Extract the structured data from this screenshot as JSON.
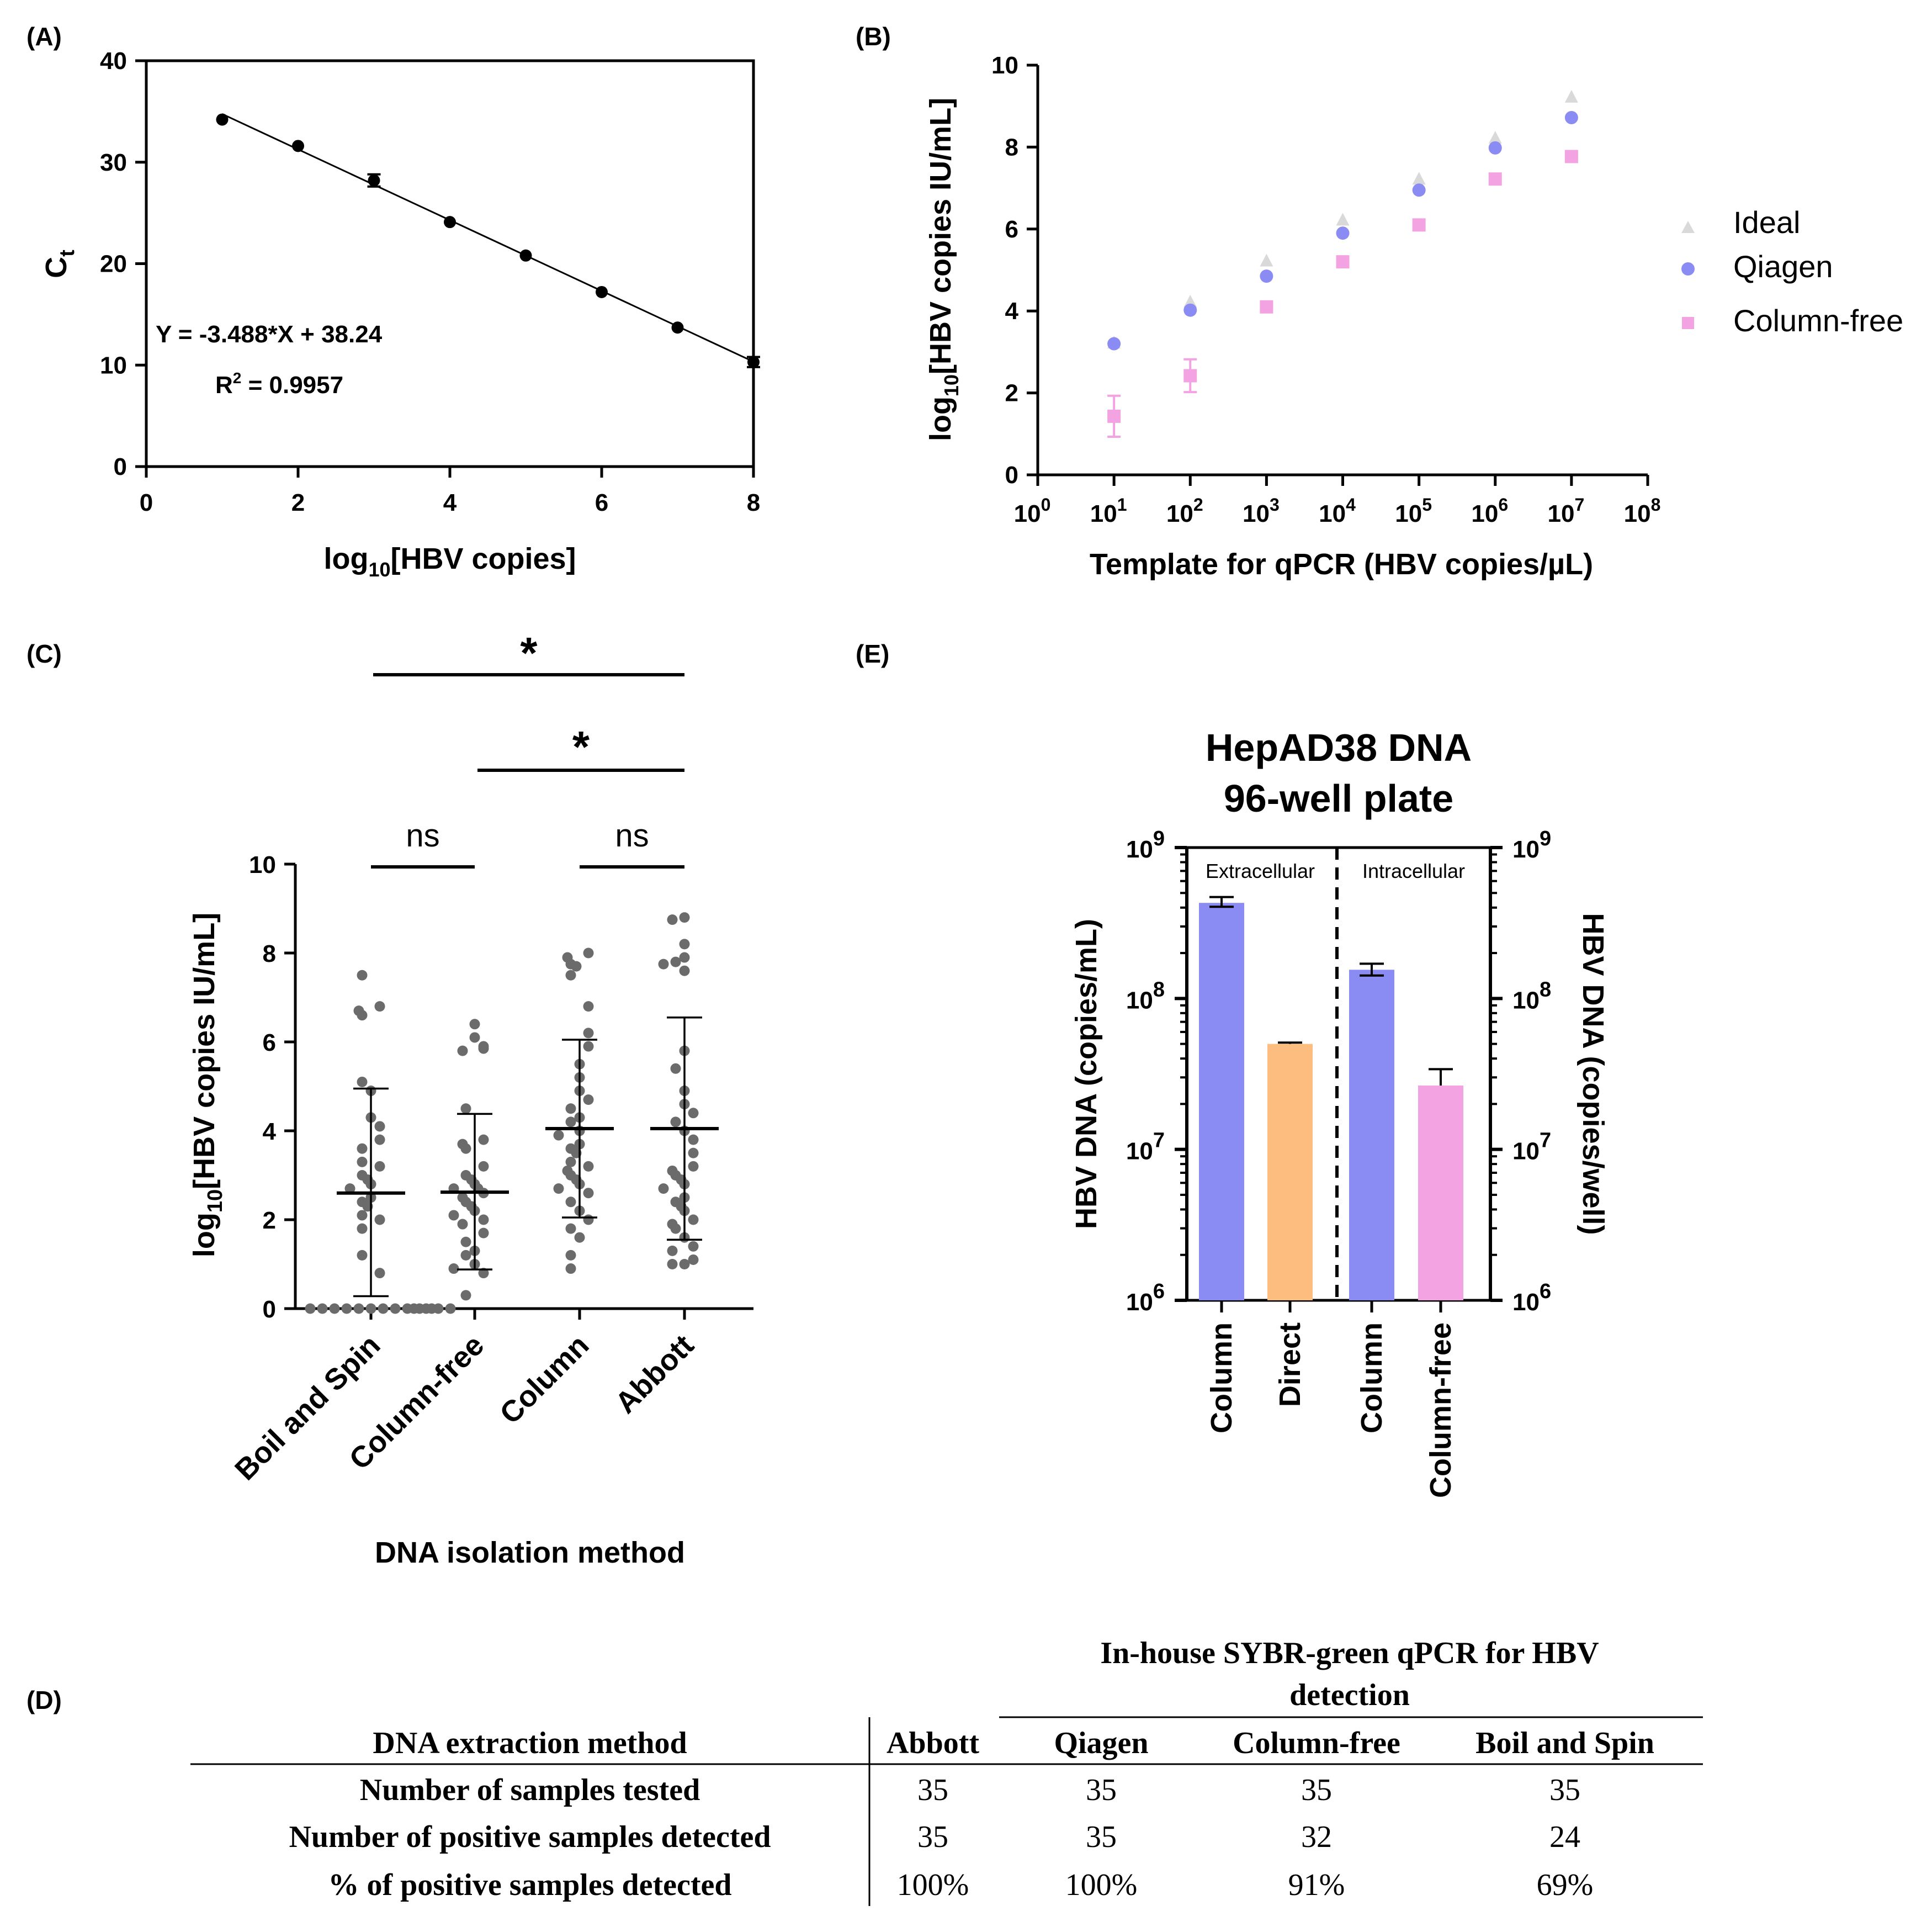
{
  "panel_labels": {
    "a": "(A)",
    "b": "(B)",
    "c": "(C)",
    "d": "(D)",
    "e": "(E)"
  },
  "chart_data": [
    {
      "id": "A",
      "type": "scatter",
      "xlabel_main": "log",
      "xlabel_sub": "10",
      "xlabel_rest": "[HBV copies]",
      "ylabel_main": "C",
      "ylabel_sub": "t",
      "xlim": [
        0,
        8
      ],
      "ylim": [
        0,
        40
      ],
      "xticks": [
        "0",
        "2",
        "4",
        "6",
        "8"
      ],
      "yticks": [
        "0",
        "10",
        "20",
        "30",
        "40"
      ],
      "x": [
        1,
        2,
        3,
        4,
        5,
        6,
        7,
        8
      ],
      "y": [
        34.2,
        31.6,
        28.2,
        24.1,
        20.8,
        17.2,
        13.7,
        10.3
      ],
      "err": [
        0.2,
        0.2,
        0.6,
        0.2,
        0.2,
        0.2,
        0.2,
        0.5
      ],
      "fit": {
        "slope": -3.488,
        "intercept": 38.24
      },
      "equation": "Y = -3.488*X + 38.24",
      "r2_label_main": "R",
      "r2_label_sup": "2",
      "r2_label_rest": " = 0.9957"
    },
    {
      "id": "B",
      "type": "scatter",
      "xlabel": "Template for qPCR (HBV copies/µL)",
      "ylabel_main": "log",
      "ylabel_sub": "10",
      "ylabel_rest": "[HBV copies IU/mL]",
      "xlim": [
        0,
        8
      ],
      "ylim": [
        0,
        10
      ],
      "xtick_base": "10",
      "xtick_exps": [
        "0",
        "1",
        "2",
        "3",
        "4",
        "5",
        "6",
        "7",
        "8"
      ],
      "yticks": [
        "0",
        "2",
        "4",
        "6",
        "8",
        "10"
      ],
      "series": [
        {
          "name": "Ideal",
          "color": "#d9d9d9",
          "marker": "triangle",
          "x": [
            1,
            2,
            3,
            4,
            5,
            6,
            7
          ],
          "values": [
            3.22,
            4.22,
            5.22,
            6.22,
            7.22,
            8.22,
            9.22
          ],
          "err": [
            0,
            0,
            0,
            0,
            0,
            0,
            0
          ]
        },
        {
          "name": "Qiagen",
          "color": "#8b8cf3",
          "marker": "circle",
          "x": [
            1,
            2,
            3,
            4,
            5,
            6,
            7
          ],
          "values": [
            3.2,
            4.02,
            4.85,
            5.9,
            6.95,
            7.98,
            8.72
          ],
          "err": [
            0,
            0,
            0,
            0,
            0,
            0,
            0
          ]
        },
        {
          "name": "Column-free",
          "color": "#f4a3e2",
          "marker": "square",
          "x": [
            1,
            2,
            3,
            4,
            5,
            6,
            7
          ],
          "values": [
            1.43,
            2.42,
            4.1,
            5.2,
            6.1,
            7.22,
            7.77
          ],
          "err": [
            0.5,
            0.4,
            0,
            0,
            0,
            0,
            0
          ]
        }
      ]
    },
    {
      "id": "C",
      "type": "scatter",
      "xlabel": "DNA isolation method",
      "ylabel_main": "log",
      "ylabel_sub": "10",
      "ylabel_rest": "[HBV copies IU/mL]",
      "ylim": [
        0,
        10
      ],
      "yticks": [
        "0",
        "2",
        "4",
        "6",
        "8",
        "10"
      ],
      "categories": [
        "Boil and Spin",
        "Column-free",
        "Column",
        "Abbott"
      ],
      "means": [
        2.6,
        2.62,
        4.05,
        4.05
      ],
      "sd_upper": [
        4.95,
        4.38,
        6.05,
        6.55
      ],
      "sd_lower": [
        0.28,
        0.88,
        2.05,
        1.55
      ],
      "points": [
        [
          7.5,
          6.8,
          6.7,
          6.6,
          5.1,
          4.9,
          4.3,
          4.1,
          3.8,
          3.6,
          3.3,
          3.2,
          3.0,
          2.9,
          2.8,
          2.7,
          2.5,
          2.4,
          2.3,
          2.1,
          2.0,
          1.8,
          1.2,
          0.8,
          0,
          0,
          0,
          0,
          0,
          0,
          0,
          0,
          0,
          0,
          0
        ],
        [
          6.4,
          6.1,
          5.9,
          5.85,
          5.8,
          4.5,
          3.8,
          3.7,
          3.6,
          3.2,
          3.0,
          2.9,
          2.8,
          2.7,
          2.7,
          2.6,
          2.5,
          2.4,
          2.3,
          2.2,
          2.1,
          2.0,
          1.9,
          1.7,
          1.5,
          1.3,
          1.2,
          1.0,
          0.9,
          0.8,
          0.3,
          0,
          0,
          0,
          0
        ],
        [
          8.0,
          7.9,
          7.75,
          7.7,
          7.5,
          6.8,
          6.2,
          5.9,
          5.5,
          5.2,
          4.9,
          4.7,
          4.5,
          4.3,
          4.2,
          4.0,
          3.9,
          3.7,
          3.6,
          3.5,
          3.3,
          3.2,
          3.1,
          3.0,
          2.9,
          2.8,
          2.7,
          2.6,
          2.4,
          2.2,
          2.0,
          1.8,
          1.6,
          1.2,
          0.9
        ],
        [
          8.8,
          8.75,
          8.2,
          7.9,
          7.8,
          7.75,
          7.6,
          5.8,
          5.4,
          4.9,
          4.6,
          4.4,
          4.2,
          4.0,
          3.8,
          3.5,
          3.2,
          3.1,
          3.0,
          2.9,
          2.8,
          2.7,
          2.5,
          2.4,
          2.3,
          2.2,
          2.0,
          1.9,
          1.8,
          1.6,
          1.4,
          1.3,
          1.1,
          1.0,
          1.0
        ]
      ],
      "comparisons": [
        {
          "from": 0,
          "to": 3,
          "label": "*"
        },
        {
          "from": 1,
          "to": 3,
          "label": "*"
        },
        {
          "from": 0,
          "to": 1,
          "label": "ns"
        },
        {
          "from": 2,
          "to": 3,
          "label": "ns"
        }
      ]
    },
    {
      "id": "E",
      "type": "bar",
      "title_line1": "HepAD38 DNA",
      "title_line2": "96-well plate",
      "ylabel_left": "HBV DNA (copies/mL)",
      "ylabel_right": "HBV DNA (copies/well)",
      "yscale": "log",
      "ylim_exp": [
        6,
        9
      ],
      "ytick_base": "10",
      "ytick_exps": [
        "6",
        "7",
        "8",
        "9"
      ],
      "section_labels": [
        "Extracellular",
        "Intracellular"
      ],
      "categories": [
        "Column",
        "Direct",
        "Column",
        "Column-free"
      ],
      "values": [
        430000000,
        50000000,
        155000000,
        26500000
      ],
      "err_upper": [
        470000000,
        51000000,
        170000000,
        34000000
      ],
      "err_lower": [
        405000000,
        50000000,
        142000000,
        26500000
      ],
      "colors": [
        "#8b8cf3",
        "#fdbd7e",
        "#8b8cf3",
        "#f4a3e2"
      ]
    }
  ],
  "table": {
    "group_header": [
      "In-house SYBR-green qPCR for HBV",
      "detection"
    ],
    "columns": [
      "DNA extraction method",
      "Abbott",
      "Qiagen",
      "Column-free",
      "Boil and Spin"
    ],
    "rows": [
      [
        "Number of samples tested",
        "35",
        "35",
        "35",
        "35"
      ],
      [
        "Number of positive samples detected",
        "35",
        "35",
        "32",
        "24"
      ],
      [
        "% of positive samples detected",
        "100%",
        "100%",
        "91%",
        "69%"
      ]
    ]
  }
}
